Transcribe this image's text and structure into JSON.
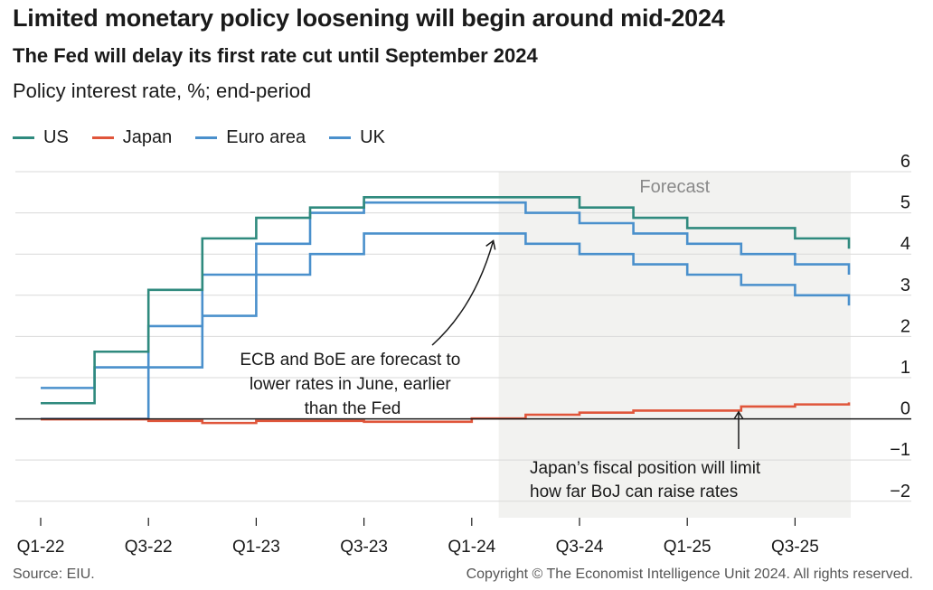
{
  "title": "Limited monetary policy loosening will begin around mid-2024",
  "subtitle": "The Fed will delay its first rate cut until September 2024",
  "unit_label": "Policy interest rate, %; end-period",
  "source": "Source: EIU.",
  "copyright": "Copyright © The Economist Intelligence Unit 2024. All rights reserved.",
  "chart_data": {
    "type": "line",
    "step": true,
    "categories": [
      "Q1-22",
      "Q2-22",
      "Q3-22",
      "Q4-22",
      "Q1-23",
      "Q2-23",
      "Q3-23",
      "Q4-23",
      "Q1-24",
      "Q2-24",
      "Q3-24",
      "Q4-24",
      "Q1-25",
      "Q2-25",
      "Q3-25",
      "Q4-25"
    ],
    "xtick_labels": [
      "Q1-22",
      "Q3-22",
      "Q1-23",
      "Q3-23",
      "Q1-24",
      "Q3-24",
      "Q1-25",
      "Q3-25"
    ],
    "ylim": [
      -2.4,
      6
    ],
    "yticks": [
      -2,
      -1,
      0,
      1,
      2,
      3,
      4,
      5,
      6
    ],
    "ytick_labels": [
      "−2",
      "−1",
      "0",
      "1",
      "2",
      "3",
      "4",
      "5",
      "6"
    ],
    "grid": true,
    "forecast_start": "Q2-24",
    "forecast_label": "Forecast",
    "series": [
      {
        "name": "US",
        "color": "#2f8a7e",
        "values": [
          0.38,
          1.63,
          3.13,
          4.38,
          4.88,
          5.13,
          5.38,
          5.38,
          5.38,
          5.38,
          5.13,
          4.88,
          4.63,
          4.63,
          4.38,
          4.13
        ]
      },
      {
        "name": "Japan",
        "color": "#e0553a",
        "values": [
          -0.01,
          -0.01,
          -0.05,
          -0.1,
          -0.05,
          -0.05,
          -0.07,
          -0.07,
          0.01,
          0.1,
          0.15,
          0.2,
          0.2,
          0.3,
          0.35,
          0.4
        ]
      },
      {
        "name": "Euro area",
        "color": "#4a90cc",
        "values": [
          0.0,
          0.0,
          1.25,
          2.5,
          3.5,
          4.0,
          4.5,
          4.5,
          4.5,
          4.25,
          4.0,
          3.75,
          3.5,
          3.25,
          3.0,
          2.75
        ]
      },
      {
        "name": "UK",
        "color": "#4a90cc",
        "values": [
          0.75,
          1.25,
          2.25,
          3.5,
          4.25,
          5.0,
          5.25,
          5.25,
          5.25,
          5.0,
          4.75,
          4.5,
          4.25,
          4.0,
          3.75,
          3.5
        ]
      }
    ],
    "annotations": [
      {
        "text_lines": [
          "ECB and BoE are forecast to",
          "lower rates in June, earlier",
          "than the Fed"
        ],
        "target_category": "Q2-24"
      },
      {
        "text_lines": [
          "Japan’s fiscal position will limit",
          "how far BoJ can raise rates"
        ],
        "target_category": "Q4-25"
      }
    ]
  }
}
